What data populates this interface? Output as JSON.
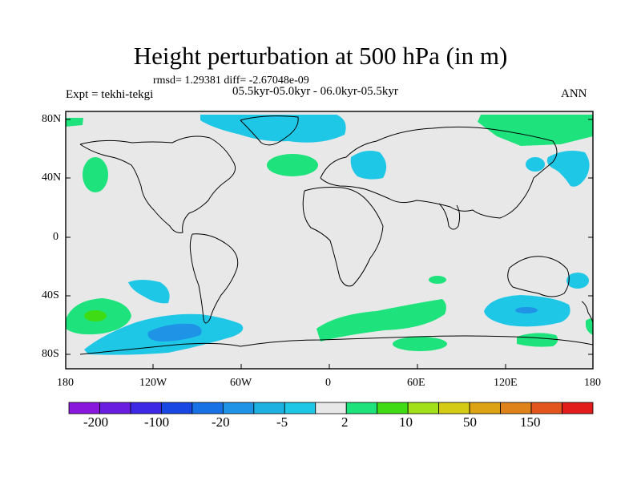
{
  "title": "Height perturbation at 500 hPa (in m)",
  "stats": "rmsd= 1.29381 diff= -2.67048e-09",
  "experiment": "Expt = tekhi-tekgi",
  "period": "05.5kyr-05.0kyr - 06.0kyr-05.5kyr",
  "season": "ANN",
  "lat_labels": [
    "80N",
    "40N",
    "0",
    "40S",
    "80S"
  ],
  "lon_labels": [
    "180",
    "120W",
    "60W",
    "0",
    "60E",
    "120E",
    "180"
  ],
  "colorbar": {
    "labels": [
      "-200",
      "-100",
      "-20",
      "-5",
      "2",
      "10",
      "50",
      "150"
    ],
    "colors": [
      "#8a17dc",
      "#6a1fe0",
      "#3d28e6",
      "#1847e3",
      "#1872e6",
      "#1f93e6",
      "#1cb1e0",
      "#1fc7e6",
      "#e8e8e8",
      "#1ee37d",
      "#3fdc16",
      "#a2e01a",
      "#d4cb14",
      "#dca314",
      "#e0821a",
      "#e2551c",
      "#e21b1b"
    ]
  },
  "colors": {
    "map_background": "#e8e8e8",
    "negative": "#1fc7e6",
    "negative_strong": "#1f93e6",
    "positive": "#1ee37d",
    "positive_strong": "#3fdc16"
  }
}
